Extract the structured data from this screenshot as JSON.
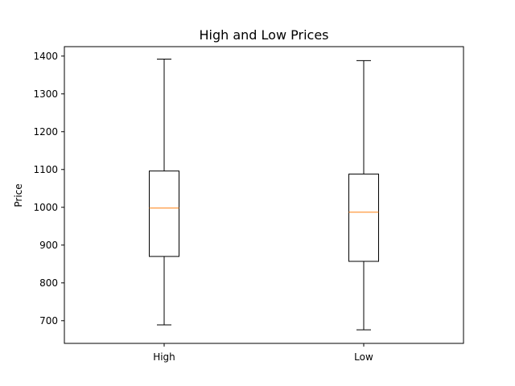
{
  "chart_data": {
    "type": "box",
    "title": "High and Low Prices",
    "xlabel": "",
    "ylabel": "Price",
    "ylim": [
      640,
      1425
    ],
    "yticks": [
      700,
      800,
      900,
      1000,
      1100,
      1200,
      1300,
      1400
    ],
    "categories": [
      "High",
      "Low"
    ],
    "series": [
      {
        "whisker_low": 689,
        "q1": 870,
        "median": 998,
        "q3": 1096,
        "whisker_high": 1392
      },
      {
        "whisker_low": 676,
        "q1": 857,
        "median": 987,
        "q3": 1088,
        "whisker_high": 1388
      }
    ],
    "grid": false,
    "colors": {
      "box": "#000000",
      "median": "#ff7f0e",
      "axes": "#000000"
    }
  }
}
